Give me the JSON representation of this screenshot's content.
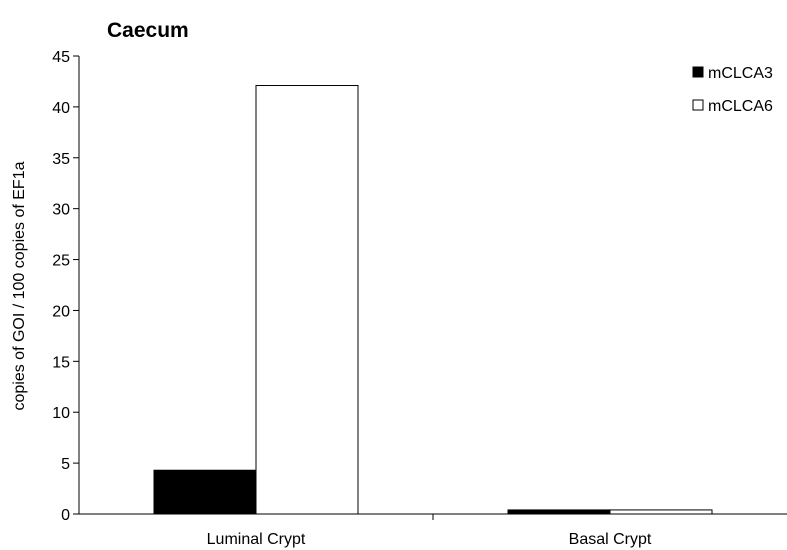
{
  "chart_data": {
    "type": "bar",
    "title": "Caecum",
    "xlabel": "",
    "ylabel": "copies of GOI / 100 copies of EF1a",
    "categories": [
      "Luminal Crypt",
      "Basal Crypt"
    ],
    "series": [
      {
        "name": "mCLCA3",
        "values": [
          4.3,
          0.4
        ],
        "color": "#000000"
      },
      {
        "name": "mCLCA6",
        "values": [
          42.1,
          0.4
        ],
        "color": "#ffffff"
      }
    ],
    "ylim": [
      0,
      45
    ],
    "yticks": [
      0,
      5,
      10,
      15,
      20,
      25,
      30,
      35,
      40,
      45
    ],
    "grid": false,
    "legend_position": "top-right"
  }
}
